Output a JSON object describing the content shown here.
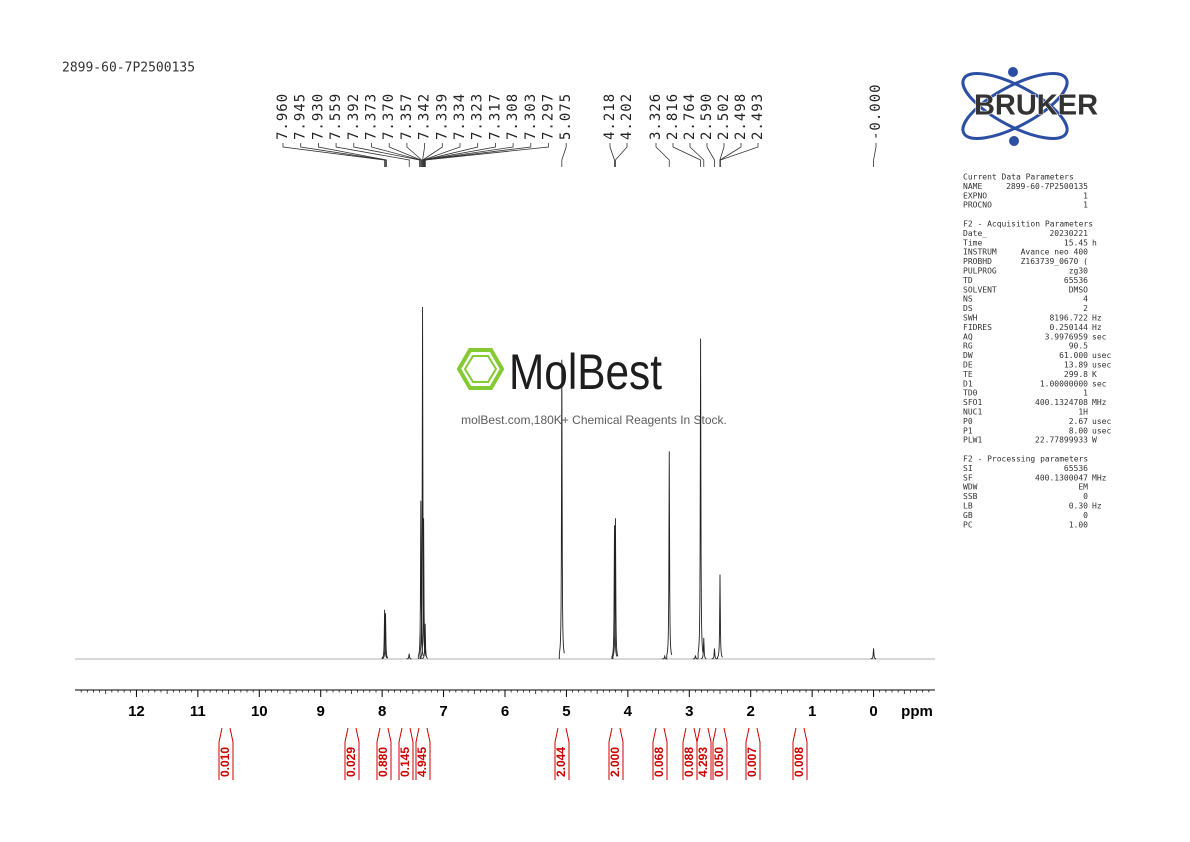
{
  "header": {
    "title": "2899-60-7P2500135"
  },
  "logo": {
    "brand": "BRUKER"
  },
  "watermark": {
    "name": "MolBest",
    "slogan": "molBest.com,180K+ Chemical Reagents In Stock."
  },
  "chart_data": {
    "type": "spectrum",
    "x_label": "ppm",
    "xlim": [
      13,
      -1
    ],
    "xticks": [
      12,
      11,
      10,
      9,
      8,
      7,
      6,
      5,
      4,
      3,
      2,
      1,
      0
    ],
    "ylim": [
      0,
      100
    ],
    "x": [
      7.96,
      7.945,
      7.56,
      7.37,
      7.342,
      7.325,
      7.3,
      5.075,
      4.218,
      4.202,
      3.4,
      3.326,
      2.9,
      2.816,
      2.764,
      2.59,
      2.5,
      0
    ],
    "values": [
      14,
      13,
      1.5,
      45,
      100,
      40,
      10,
      85,
      38,
      40,
      0.8,
      59,
      1,
      91,
      6,
      3,
      24,
      3
    ],
    "peak_labels": [
      {
        "value": 7.96,
        "label": "7.960"
      },
      {
        "value": 7.945,
        "label": "7.945"
      },
      {
        "value": 7.93,
        "label": "7.930"
      },
      {
        "value": 7.559,
        "label": "7.559"
      },
      {
        "value": 7.392,
        "label": "7.392"
      },
      {
        "value": 7.373,
        "label": "7.373"
      },
      {
        "value": 7.37,
        "label": "7.370"
      },
      {
        "value": 7.357,
        "label": "7.357"
      },
      {
        "value": 7.342,
        "label": "7.342"
      },
      {
        "value": 7.339,
        "label": "7.339"
      },
      {
        "value": 7.334,
        "label": "7.334"
      },
      {
        "value": 7.323,
        "label": "7.323"
      },
      {
        "value": 7.317,
        "label": "7.317"
      },
      {
        "value": 7.308,
        "label": "7.308"
      },
      {
        "value": 7.303,
        "label": "7.303"
      },
      {
        "value": 7.297,
        "label": "7.297"
      },
      {
        "value": 5.075,
        "label": "5.075"
      },
      {
        "value": 4.218,
        "label": "4.218"
      },
      {
        "value": 4.202,
        "label": "4.202"
      },
      {
        "value": 3.326,
        "label": "3.326"
      },
      {
        "value": 2.816,
        "label": "2.816"
      },
      {
        "value": 2.764,
        "label": "2.764"
      },
      {
        "value": 2.59,
        "label": "2.590"
      },
      {
        "value": 2.502,
        "label": "2.502"
      },
      {
        "value": 2.498,
        "label": "2.498"
      },
      {
        "value": 2.493,
        "label": "2.493"
      },
      {
        "value": 0,
        "label": "-0.000"
      }
    ],
    "integrals": [
      {
        "value": 0.01,
        "label": "0.010"
      },
      {
        "value": 0.029,
        "label": "0.029"
      },
      {
        "value": 0.88,
        "label": "0.880"
      },
      {
        "value": 0.145,
        "label": "0.145"
      },
      {
        "value": 4.945,
        "label": "4.945"
      },
      {
        "value": 2.044,
        "label": "2.044"
      },
      {
        "value": 2,
        "label": "2.000"
      },
      {
        "value": 0.068,
        "label": "0.068"
      },
      {
        "value": 0.088,
        "label": "0.088"
      },
      {
        "value": 4.293,
        "label": "4.293"
      },
      {
        "value": 0.05,
        "label": "0.050"
      },
      {
        "value": 0.007,
        "label": "0.007"
      },
      {
        "value": 0.008,
        "label": "0.008"
      }
    ]
  },
  "parameters": [
    {
      "title": "Current Data Parameters",
      "rows": [
        [
          "NAME",
          "2899-60-7P2500135",
          ""
        ],
        [
          "EXPNO",
          "1",
          ""
        ],
        [
          "PROCNO",
          "1",
          ""
        ]
      ]
    },
    {
      "title": "F2 - Acquisition Parameters",
      "rows": [
        [
          "Date_",
          "20230221",
          ""
        ],
        [
          "Time",
          "15.45",
          "h"
        ],
        [
          "INSTRUM",
          "Avance neo 400",
          ""
        ],
        [
          "PROBHD",
          "Z163739_0670 (",
          ""
        ],
        [
          "PULPROG",
          "zg30",
          ""
        ],
        [
          "TD",
          "65536",
          ""
        ],
        [
          "SOLVENT",
          "DMSO",
          ""
        ],
        [
          "NS",
          "4",
          ""
        ],
        [
          "DS",
          "2",
          ""
        ],
        [
          "SWH",
          "8196.722",
          "Hz"
        ],
        [
          "FIDRES",
          "0.250144",
          "Hz"
        ],
        [
          "AQ",
          "3.9976959",
          "sec"
        ],
        [
          "RG",
          "90.5",
          ""
        ],
        [
          "DW",
          "61.000",
          "usec"
        ],
        [
          "DE",
          "13.89",
          "usec"
        ],
        [
          "TE",
          "299.8",
          "K"
        ],
        [
          "D1",
          "1.00000000",
          "sec"
        ],
        [
          "TD0",
          "1",
          ""
        ],
        [
          "SFO1",
          "400.1324708",
          "MHz"
        ],
        [
          "NUC1",
          "1H",
          ""
        ],
        [
          "P0",
          "2.67",
          "usec"
        ],
        [
          "P1",
          "8.00",
          "usec"
        ],
        [
          "PLW1",
          "22.77899933",
          "W"
        ]
      ]
    },
    {
      "title": "F2 - Processing parameters",
      "rows": [
        [
          "SI",
          "65536",
          ""
        ],
        [
          "SF",
          "400.1300047",
          "MHz"
        ],
        [
          "WDW",
          "EM",
          ""
        ],
        [
          "SSB",
          "0",
          ""
        ],
        [
          "LB",
          "0.30",
          "Hz"
        ],
        [
          "GB",
          "0",
          ""
        ],
        [
          "PC",
          "1.00",
          ""
        ]
      ]
    }
  ]
}
